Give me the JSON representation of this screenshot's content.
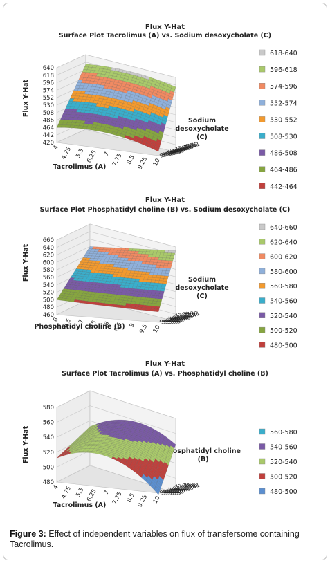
{
  "caption": {
    "label": "Figure 3:",
    "text": "Effect of independent variables on flux of transfersome containing Tacrolimus."
  },
  "chart_data": [
    {
      "type": "surface",
      "title": "Flux Y-Hat",
      "subtitle": "Surface Plot Tacrolimus (A) vs. Sodium desoxycholate  (C)",
      "xlabel": "Tacrolimus (A)",
      "ylabel": "Flux Y-Hat",
      "depth_label": "Sodium desoxycholate (C)",
      "x_ticks": [
        "4",
        "4.75",
        "5.5",
        "6.25",
        "7",
        "7.75",
        "8.5",
        "9.25",
        "10"
      ],
      "z_ticks": [
        "640",
        "618",
        "596",
        "574",
        "552",
        "530",
        "508",
        "486",
        "464",
        "442",
        "420"
      ],
      "depth_ticks": [
        "Series41",
        "Series36",
        "Series31",
        "Series26",
        "Series21",
        "Series16",
        "Series11",
        "Series6",
        "Series1"
      ],
      "zlim": [
        420,
        640
      ],
      "legend": [
        {
          "label": "618-640",
          "color": "#c9c9c9"
        },
        {
          "label": "596-618",
          "color": "#a9c96a"
        },
        {
          "label": "574-596",
          "color": "#f08a62"
        },
        {
          "label": "552-574",
          "color": "#8fb0da"
        },
        {
          "label": "530-552",
          "color": "#f39a2e"
        },
        {
          "label": "508-530",
          "color": "#3aaecb"
        },
        {
          "label": "486-508",
          "color": "#7a5aa6"
        },
        {
          "label": "464-486",
          "color": "#86a540"
        },
        {
          "label": "442-464",
          "color": "#c0403c"
        }
      ],
      "surface": {
        "front_left": 464,
        "front_mid": 486,
        "front_right": 432,
        "back_left": 612,
        "back_mid": 635,
        "back_right": 612
      }
    },
    {
      "type": "surface",
      "title": "Flux Y-Hat",
      "subtitle": "Surface Plot Phosphatidyl choline  (B) vs. Sodium desoxycholate  (C)",
      "xlabel": "Phosphatidyl choline  (B)",
      "ylabel": "Flux Y-Hat",
      "depth_label": "Sodium desoxycholate (C)",
      "x_ticks": [
        "6",
        "6.5",
        "7",
        "7.5",
        "8",
        "8.5",
        "9",
        "9.5",
        "10"
      ],
      "z_ticks": [
        "660",
        "640",
        "620",
        "600",
        "580",
        "560",
        "540",
        "520",
        "500",
        "480",
        "460"
      ],
      "depth_ticks": [
        "Series41",
        "Series36",
        "Series31",
        "Series26",
        "Series21",
        "Series16",
        "Series11",
        "Series6",
        "Series1"
      ],
      "zlim": [
        460,
        660
      ],
      "legend": [
        {
          "label": "640-660",
          "color": "#c9c9c9"
        },
        {
          "label": "620-640",
          "color": "#a9c96a"
        },
        {
          "label": "600-620",
          "color": "#f08a62"
        },
        {
          "label": "580-600",
          "color": "#8fb0da"
        },
        {
          "label": "560-580",
          "color": "#f39a2e"
        },
        {
          "label": "540-560",
          "color": "#3aaecb"
        },
        {
          "label": "520-540",
          "color": "#7a5aa6"
        },
        {
          "label": "500-520",
          "color": "#86a540"
        },
        {
          "label": "480-500",
          "color": "#c0403c"
        }
      ],
      "surface": {
        "front_left": 500,
        "front_mid": 492,
        "front_right": 488,
        "back_left": 600,
        "back_mid": 625,
        "back_right": 650
      }
    },
    {
      "type": "surface",
      "title": "Flux Y-Hat",
      "subtitle": "Surface Plot Tacrolimus (A) vs. Phosphatidyl choline  (B)",
      "xlabel": "Tacrolimus (A)",
      "ylabel": "Flux Y-Hat",
      "depth_label": "Phosphatidyl choline  (B)",
      "x_ticks": [
        "4",
        "4.75",
        "5.5",
        "6.25",
        "7",
        "7.75",
        "8.5",
        "9.25",
        "10"
      ],
      "z_ticks": [
        "580",
        "560",
        "540",
        "520",
        "500",
        "480"
      ],
      "depth_ticks": [
        "Series41",
        "Series36",
        "Series31",
        "Series26",
        "Series21",
        "Series16",
        "Series11",
        "Series6",
        "Series1"
      ],
      "zlim": [
        480,
        580
      ],
      "legend": [
        {
          "label": "560-580",
          "color": "#3aaecb"
        },
        {
          "label": "540-560",
          "color": "#7a5aa6"
        },
        {
          "label": "520-540",
          "color": "#a9c96a"
        },
        {
          "label": "500-520",
          "color": "#c0403c"
        },
        {
          "label": "480-500",
          "color": "#5b8fd0"
        }
      ],
      "surface": {
        "front_left": 512,
        "front_mid": 548,
        "front_right": 478,
        "back_left": 532,
        "back_mid": 577,
        "back_right": 545
      }
    }
  ]
}
